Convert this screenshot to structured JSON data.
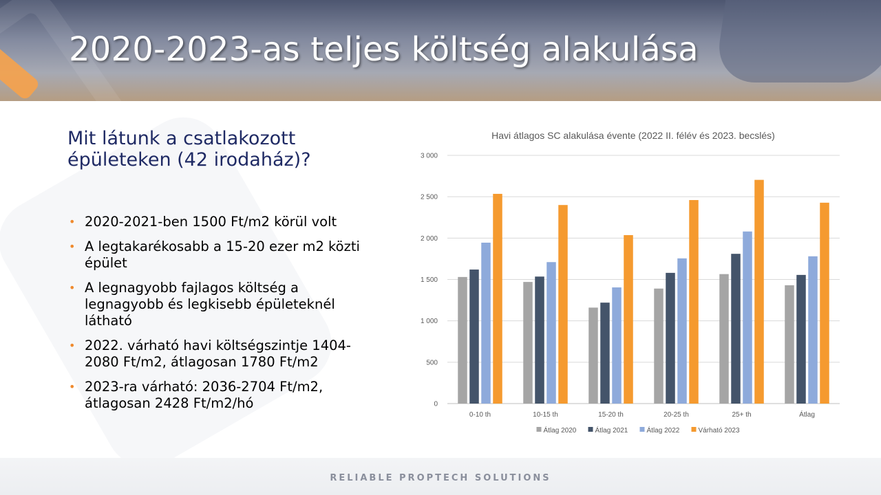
{
  "slide": {
    "title": "2020-2023-as teljes költség alakulása",
    "subtitle": "Mit látunk a csatlakozott épületeken (42 irodaház)?",
    "bullets": [
      "2020-2021-ben 1500 Ft/m2 körül volt",
      "A legtakarékosabb a 15-20 ezer m2 közti épület",
      "A legnagyobb fajlagos költség a legnagyobb és legkisebb épületeknél látható",
      "2022. várható havi költségszintje 1404-2080 Ft/m2, átlagosan 1780 Ft/m2",
      "2023-ra várható: 2036-2704 Ft/m2, átlagosan 2428 Ft/m2/hó"
    ],
    "footer": "RELIABLE PROPTECH SOLUTIONS",
    "colors": {
      "title_text": "#ffffff",
      "subtitle_text": "#1f2a64",
      "bullet": "#ef8a2e"
    }
  },
  "chart_data": {
    "type": "bar",
    "title": "Havi átlagos SC alakulása évente (2022 II. félév és 2023. becslés)",
    "categories": [
      "0-10 th",
      "10-15 th",
      "15-20 th",
      "20-25 th",
      "25+ th",
      "Átlag"
    ],
    "series": [
      {
        "name": "Átlag 2020",
        "color": "#a5a5a5",
        "values": [
          1530,
          1470,
          1160,
          1390,
          1565,
          1430
        ]
      },
      {
        "name": "Átlag 2021",
        "color": "#44546a",
        "values": [
          1620,
          1535,
          1220,
          1580,
          1810,
          1555
        ]
      },
      {
        "name": "Átlag 2022",
        "color": "#8eaadb",
        "values": [
          1945,
          1710,
          1404,
          1755,
          2080,
          1780
        ]
      },
      {
        "name": "Várható 2023",
        "color": "#f59a2f",
        "values": [
          2535,
          2400,
          2036,
          2460,
          2704,
          2428
        ]
      }
    ],
    "ylim": [
      0,
      3000
    ],
    "yticks": [
      0,
      500,
      1000,
      1500,
      2000,
      2500,
      3000
    ],
    "ytick_labels": [
      "0",
      "500",
      "1 000",
      "1 500",
      "2 000",
      "2 500",
      "3 000"
    ],
    "grid": true,
    "legend": "bottom"
  }
}
